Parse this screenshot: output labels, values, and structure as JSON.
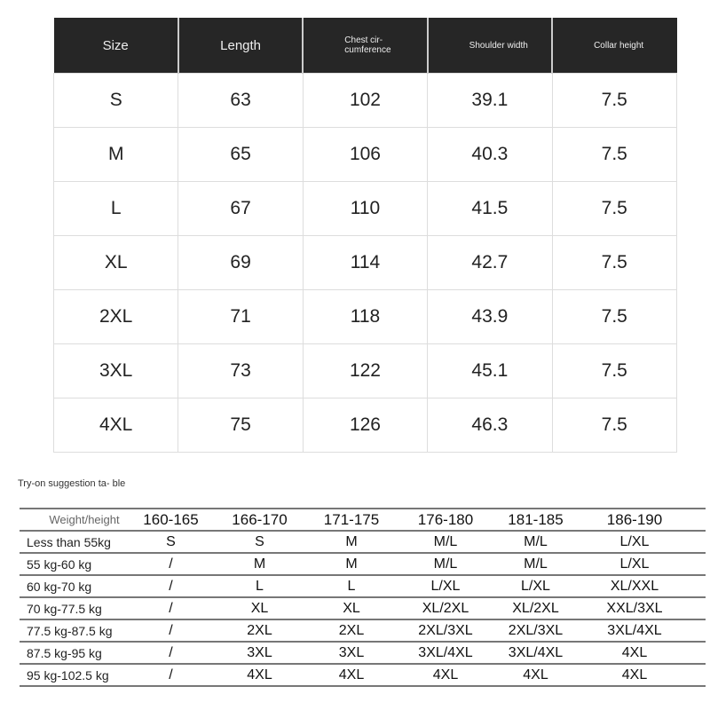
{
  "size_table": {
    "headers": [
      "Size",
      "Length",
      "Chest cir- cumference",
      "Shoulder width",
      "Collar height"
    ],
    "rows": [
      [
        "S",
        "63",
        "102",
        "39.1",
        "7.5"
      ],
      [
        "M",
        "65",
        "106",
        "40.3",
        "7.5"
      ],
      [
        "L",
        "67",
        "110",
        "41.5",
        "7.5"
      ],
      [
        "XL",
        "69",
        "114",
        "42.7",
        "7.5"
      ],
      [
        "2XL",
        "71",
        "118",
        "43.9",
        "7.5"
      ],
      [
        "3XL",
        "73",
        "122",
        "45.1",
        "7.5"
      ],
      [
        "4XL",
        "75",
        "126",
        "46.3",
        "7.5"
      ]
    ]
  },
  "suggestion_table": {
    "caption": "Try-on suggestion ta- ble",
    "headers": [
      "Weight/height",
      "160-165",
      "166-170",
      "171-175",
      "176-180",
      "181-185",
      "186-190"
    ],
    "rows": [
      [
        "Less than 55kg",
        "S",
        "S",
        "M",
        "M/L",
        "M/L",
        "L/XL"
      ],
      [
        "55 kg-60 kg",
        "/",
        "M",
        "M",
        "M/L",
        "M/L",
        "L/XL"
      ],
      [
        "60 kg-70 kg",
        "/",
        "L",
        "L",
        "L/XL",
        "L/XL",
        "XL/XXL"
      ],
      [
        "70 kg-77.5 kg",
        "/",
        "XL",
        "XL",
        "XL/2XL",
        "XL/2XL",
        "XXL/3XL"
      ],
      [
        "77.5 kg-87.5 kg",
        "/",
        "2XL",
        "2XL",
        "2XL/3XL",
        "2XL/3XL",
        "3XL/4XL"
      ],
      [
        "87.5 kg-95 kg",
        "/",
        "3XL",
        "3XL",
        "3XL/4XL",
        "3XL/4XL",
        "4XL"
      ],
      [
        "95 kg-102.5 kg",
        "/",
        "4XL",
        "4XL",
        "4XL",
        "4XL",
        "4XL"
      ]
    ]
  }
}
